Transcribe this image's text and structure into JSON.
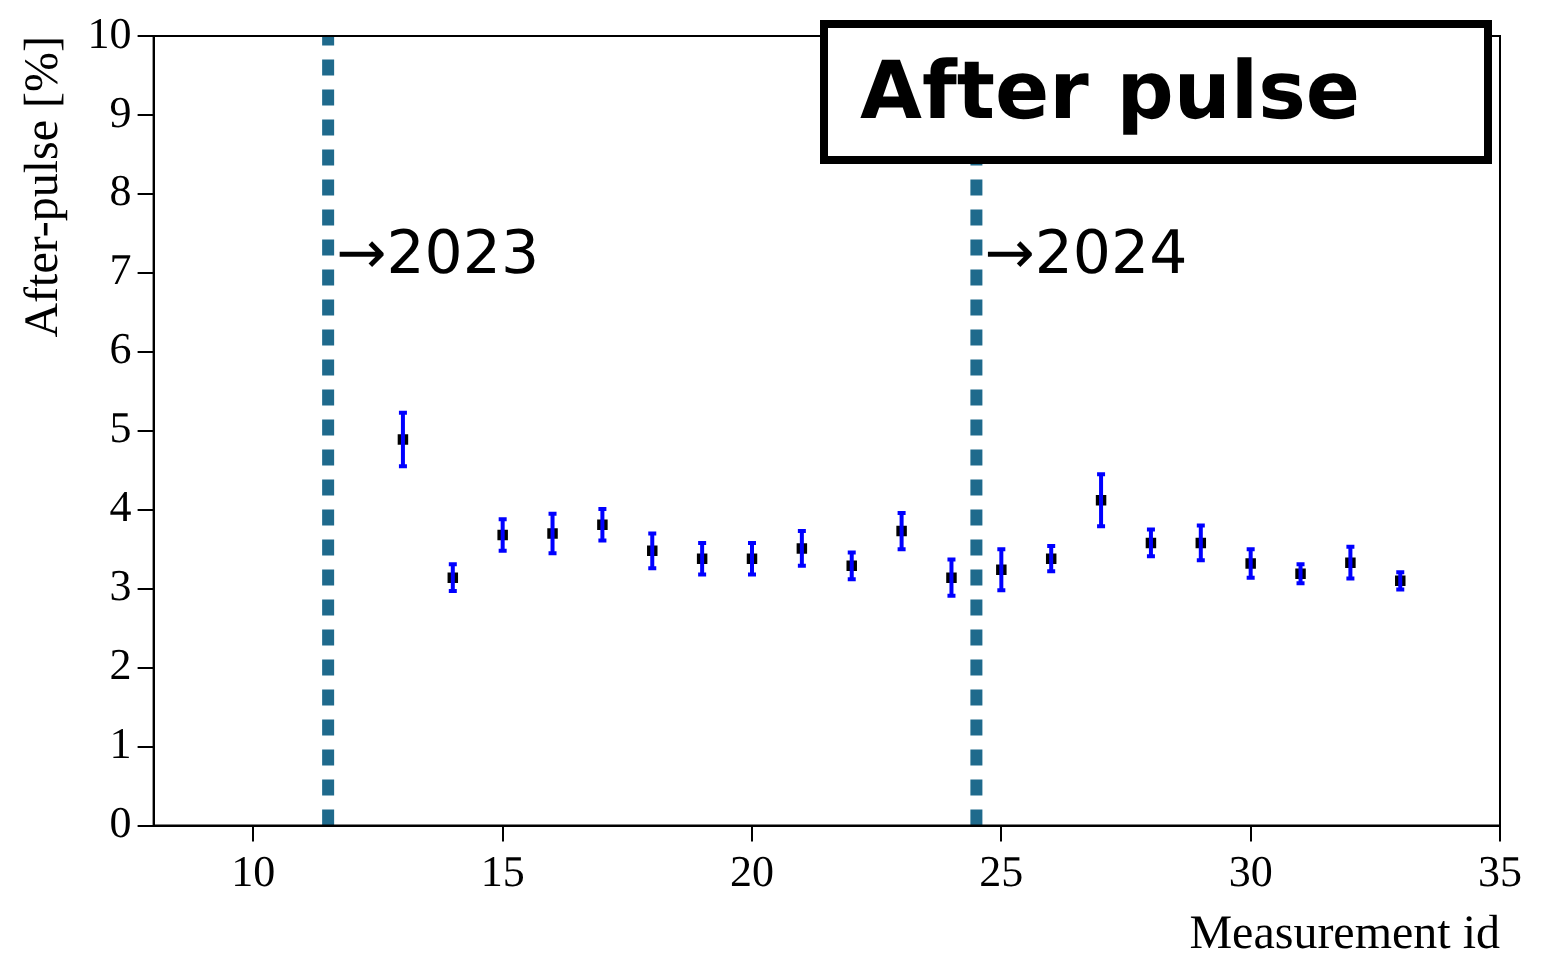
{
  "chart_data": {
    "type": "scatter",
    "title": "After pulse",
    "xlabel": "Measurement id",
    "ylabel": "After-pulse [%]",
    "x": [
      13,
      14,
      15,
      16,
      17,
      18,
      19,
      20,
      21,
      22,
      23,
      24,
      25,
      26,
      27,
      28,
      29,
      30,
      31,
      32,
      33
    ],
    "series": [
      {
        "color": "#000000",
        "values": [
          4.89,
          3.14,
          3.68,
          3.7,
          3.81,
          3.48,
          3.38,
          3.38,
          3.51,
          3.29,
          3.73,
          3.14,
          3.24,
          3.38,
          4.12,
          3.58,
          3.58,
          3.32,
          3.19,
          3.33,
          3.1
        ],
        "errors": [
          0.34,
          0.17,
          0.2,
          0.25,
          0.2,
          0.22,
          0.2,
          0.2,
          0.22,
          0.17,
          0.23,
          0.23,
          0.26,
          0.16,
          0.33,
          0.17,
          0.22,
          0.18,
          0.12,
          0.2,
          0.11
        ]
      }
    ],
    "xlim": [
      8,
      35
    ],
    "xticks": [
      10,
      15,
      20,
      25,
      30,
      35
    ],
    "ylim": [
      0,
      10
    ],
    "yticks": [
      0,
      1,
      2,
      3,
      4,
      5,
      6,
      7,
      8,
      9,
      10
    ],
    "grid": false,
    "legend": false,
    "marker": "square",
    "ref_lines": [
      {
        "axis": "x",
        "value": 11.5,
        "label": "→2023",
        "color": "#1f6a8c",
        "line_style": "dashed"
      },
      {
        "axis": "x",
        "value": 24.5,
        "label": "→2024",
        "color": "#1f6a8c",
        "line_style": "dashed"
      }
    ]
  }
}
